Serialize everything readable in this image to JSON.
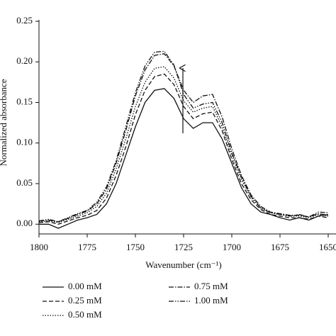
{
  "chart_data": {
    "type": "line",
    "xlabel": "Wavenumber (cm⁻¹)",
    "ylabel": "Normalized absorbance",
    "x": [
      1800,
      1795,
      1790,
      1785,
      1780,
      1775,
      1770,
      1765,
      1760,
      1755,
      1750,
      1745,
      1740,
      1735,
      1730,
      1725,
      1720,
      1715,
      1710,
      1705,
      1700,
      1695,
      1690,
      1685,
      1680,
      1675,
      1670,
      1665,
      1660,
      1655,
      1650
    ],
    "xlim": [
      1800,
      1650
    ],
    "xticks": [
      1800,
      1775,
      1750,
      1725,
      1700,
      1675,
      1650
    ],
    "ylim": [
      -0.012,
      0.25
    ],
    "yticks": [
      {
        "value": 0,
        "label": "0.00"
      },
      {
        "value": 0.05,
        "label": "0.05"
      },
      {
        "value": 0.1,
        "label": "0.10"
      },
      {
        "value": 0.15,
        "label": "0.15"
      },
      {
        "value": 0.2,
        "label": "0.20"
      },
      {
        "value": 0.25,
        "label": "0.25"
      }
    ],
    "series": [
      {
        "name": "0.00 mM",
        "color": "#111111",
        "dash": "solid",
        "values": [
          0.0,
          0.0,
          -0.005,
          0.0,
          0.005,
          0.008,
          0.012,
          0.025,
          0.05,
          0.085,
          0.12,
          0.15,
          0.165,
          0.167,
          0.155,
          0.13,
          0.118,
          0.125,
          0.125,
          0.105,
          0.075,
          0.045,
          0.025,
          0.015,
          0.012,
          0.008,
          0.005,
          0.008,
          0.005,
          0.01,
          0.012
        ]
      },
      {
        "name": "0.25 mM",
        "color": "#111111",
        "dash": "dashed",
        "values": [
          0.002,
          0.003,
          0.0,
          0.004,
          0.008,
          0.011,
          0.017,
          0.032,
          0.06,
          0.095,
          0.135,
          0.165,
          0.182,
          0.185,
          0.172,
          0.145,
          0.13,
          0.136,
          0.138,
          0.115,
          0.08,
          0.05,
          0.03,
          0.018,
          0.012,
          0.01,
          0.008,
          0.008,
          0.006,
          0.01,
          0.008
        ]
      },
      {
        "name": "0.50 mM",
        "color": "#111111",
        "dash": "dotted",
        "values": [
          0.003,
          0.004,
          0.002,
          0.006,
          0.01,
          0.014,
          0.022,
          0.038,
          0.068,
          0.105,
          0.145,
          0.175,
          0.192,
          0.194,
          0.18,
          0.152,
          0.138,
          0.143,
          0.145,
          0.12,
          0.085,
          0.055,
          0.033,
          0.02,
          0.014,
          0.012,
          0.01,
          0.01,
          0.008,
          0.012,
          0.01
        ]
      },
      {
        "name": "0.75 mM",
        "color": "#111111",
        "dash": "dashdot",
        "values": [
          0.004,
          0.005,
          0.003,
          0.007,
          0.012,
          0.016,
          0.025,
          0.043,
          0.075,
          0.115,
          0.158,
          0.19,
          0.208,
          0.21,
          0.195,
          0.165,
          0.15,
          0.158,
          0.16,
          0.132,
          0.093,
          0.06,
          0.036,
          0.022,
          0.015,
          0.013,
          0.011,
          0.011,
          0.009,
          0.013,
          0.011
        ]
      },
      {
        "name": "1.00 mM",
        "color": "#111111",
        "dash": "dashdotdot",
        "values": [
          0.004,
          0.006,
          0.003,
          0.008,
          0.013,
          0.017,
          0.027,
          0.046,
          0.078,
          0.12,
          0.162,
          0.195,
          0.212,
          0.213,
          0.196,
          0.16,
          0.143,
          0.148,
          0.15,
          0.125,
          0.088,
          0.058,
          0.034,
          0.02,
          0.014,
          0.012,
          0.01,
          0.012,
          0.009,
          0.015,
          0.014
        ]
      }
    ]
  }
}
